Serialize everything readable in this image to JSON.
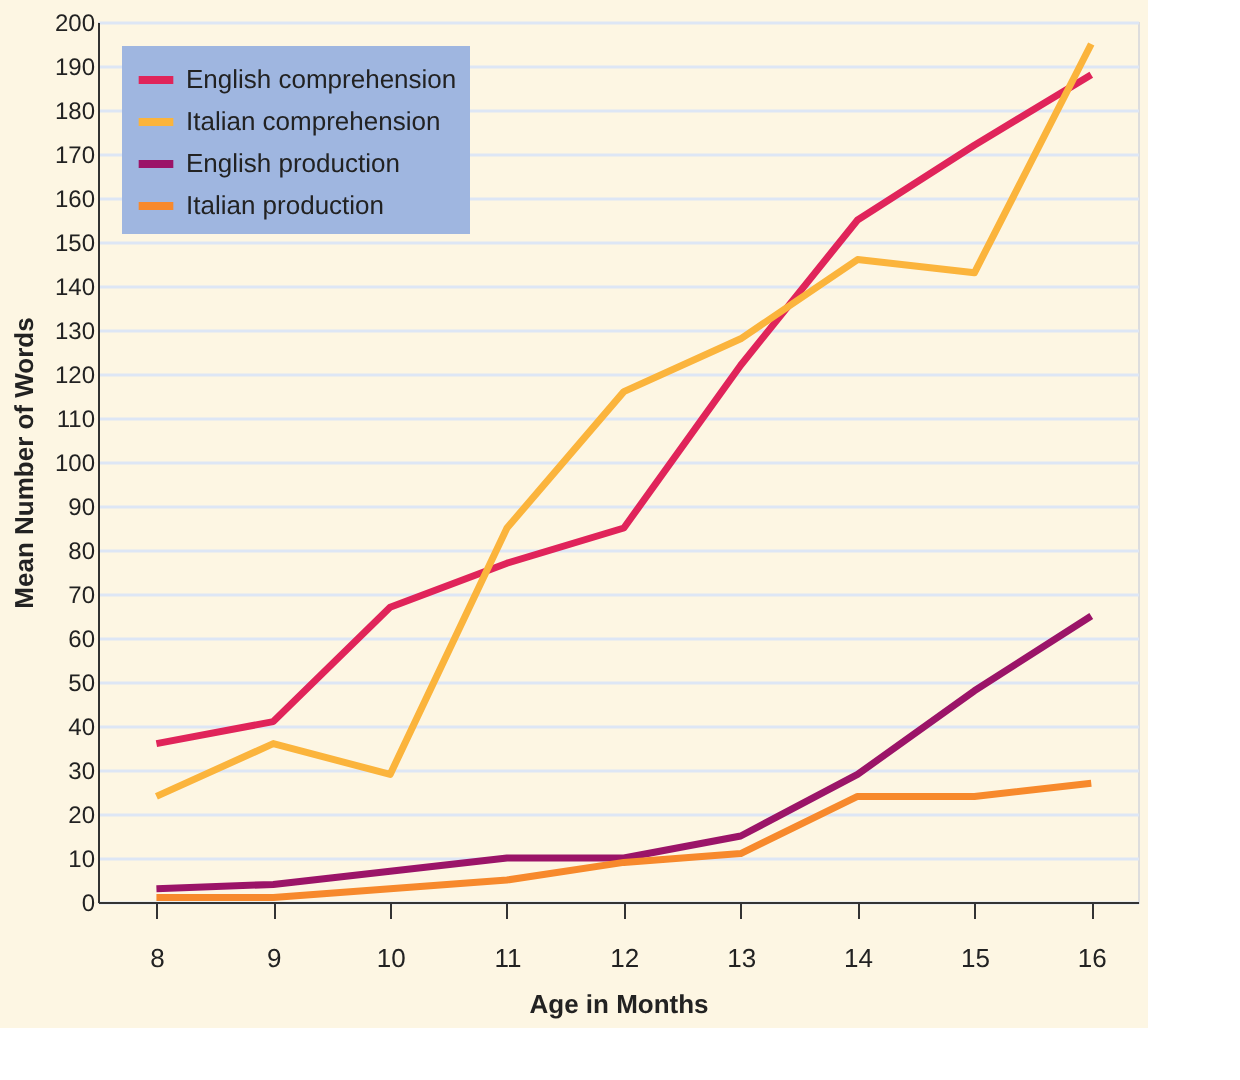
{
  "chart_data": {
    "type": "line",
    "xlabel": "Age in Months",
    "ylabel": "Mean Number of Words",
    "x": [
      8,
      9,
      10,
      11,
      12,
      13,
      14,
      15,
      16
    ],
    "series": [
      {
        "name": "English comprehension",
        "color": "#e0245a",
        "values": [
          36,
          41,
          67,
          77,
          85,
          122,
          155,
          172,
          188
        ]
      },
      {
        "name": "Italian comprehension",
        "color": "#fbb43c",
        "values": [
          24,
          36,
          29,
          85,
          116,
          128,
          146,
          143,
          195
        ]
      },
      {
        "name": "English production",
        "color": "#9b1468",
        "values": [
          3,
          4,
          7,
          10,
          10,
          15,
          29,
          48,
          65
        ]
      },
      {
        "name": "Italian production",
        "color": "#f7892c",
        "values": [
          1,
          1,
          3,
          5,
          9,
          11,
          24,
          24,
          27
        ]
      }
    ],
    "xlim": [
      7.5,
      16.4
    ],
    "xticks": [
      8,
      9,
      10,
      11,
      12,
      13,
      14,
      15,
      16
    ],
    "ylim": [
      0,
      200
    ],
    "yticks": [
      0,
      10,
      20,
      30,
      40,
      50,
      60,
      70,
      80,
      90,
      100,
      110,
      120,
      130,
      140,
      150,
      160,
      170,
      180,
      190,
      200
    ],
    "grid": "y",
    "legend": "top left",
    "line_style": "solid",
    "marker": "none"
  }
}
